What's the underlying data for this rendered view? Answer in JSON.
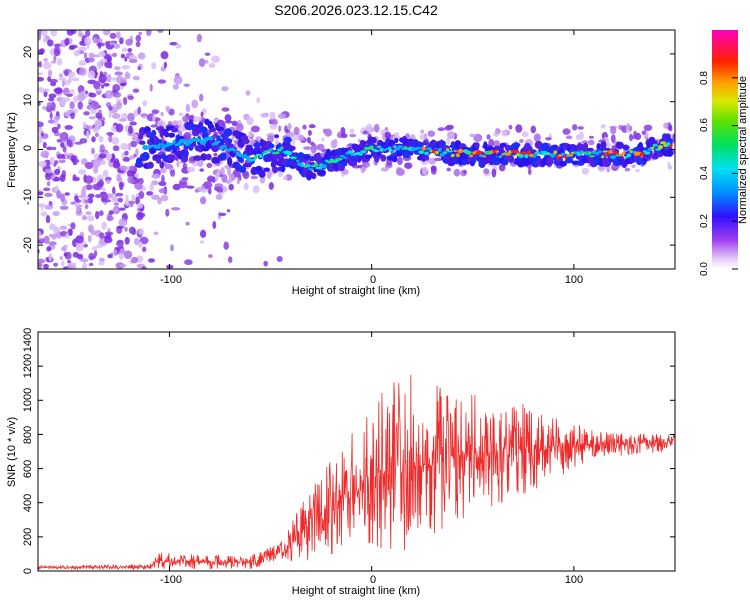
{
  "title": "S206.2026.023.12.15.C42",
  "chart_data": [
    {
      "type": "heatmap",
      "xlabel": "Height of straight line (km)",
      "ylabel": "Frequency (Hz)",
      "xlim": [
        -165,
        150
      ],
      "ylim": [
        -25,
        25
      ],
      "xticks": [
        "-100",
        "0",
        "100"
      ],
      "yticks": [
        "20",
        "10",
        "0",
        "-10",
        "-20"
      ],
      "colorbar": {
        "label": "Normalized spectral amplitude",
        "ticks": [
          "0.0",
          "0.2",
          "0.4",
          "0.6",
          "0.8"
        ],
        "range": [
          0,
          1
        ]
      },
      "ridge": [
        {
          "x": -115,
          "y": 0
        },
        {
          "x": -100,
          "y": 1
        },
        {
          "x": -80,
          "y": 2
        },
        {
          "x": -60,
          "y": -2
        },
        {
          "x": -45,
          "y": 0
        },
        {
          "x": -30,
          "y": -4
        },
        {
          "x": -10,
          "y": -1
        },
        {
          "x": 0,
          "y": 0
        },
        {
          "x": 20,
          "y": 0
        },
        {
          "x": 50,
          "y": -1
        },
        {
          "x": 100,
          "y": -1
        },
        {
          "x": 130,
          "y": -1
        },
        {
          "x": 145,
          "y": 1
        }
      ]
    },
    {
      "type": "line",
      "xlabel": "Height of straight line (km)",
      "ylabel": "SNR (10 * v/v)",
      "xlim": [
        -165,
        150
      ],
      "ylim": [
        0,
        1400
      ],
      "xticks": [
        "-100",
        "0",
        "100"
      ],
      "yticks": [
        "0",
        "200",
        "400",
        "600",
        "800",
        "1000",
        "1200",
        "1400"
      ],
      "color": "#ee2a2a",
      "envelope": [
        {
          "x": -165,
          "base": 20,
          "amp": 10
        },
        {
          "x": -110,
          "base": 25,
          "amp": 15
        },
        {
          "x": -105,
          "base": 60,
          "amp": 50
        },
        {
          "x": -60,
          "base": 50,
          "amp": 40
        },
        {
          "x": -45,
          "base": 110,
          "amp": 60
        },
        {
          "x": -30,
          "base": 280,
          "amp": 220
        },
        {
          "x": -15,
          "base": 420,
          "amp": 300
        },
        {
          "x": 0,
          "base": 550,
          "amp": 450
        },
        {
          "x": 20,
          "base": 650,
          "amp": 550
        },
        {
          "x": 40,
          "base": 680,
          "amp": 400
        },
        {
          "x": 80,
          "base": 720,
          "amp": 250
        },
        {
          "x": 110,
          "base": 740,
          "amp": 80
        },
        {
          "x": 150,
          "base": 750,
          "amp": 50
        }
      ]
    }
  ]
}
